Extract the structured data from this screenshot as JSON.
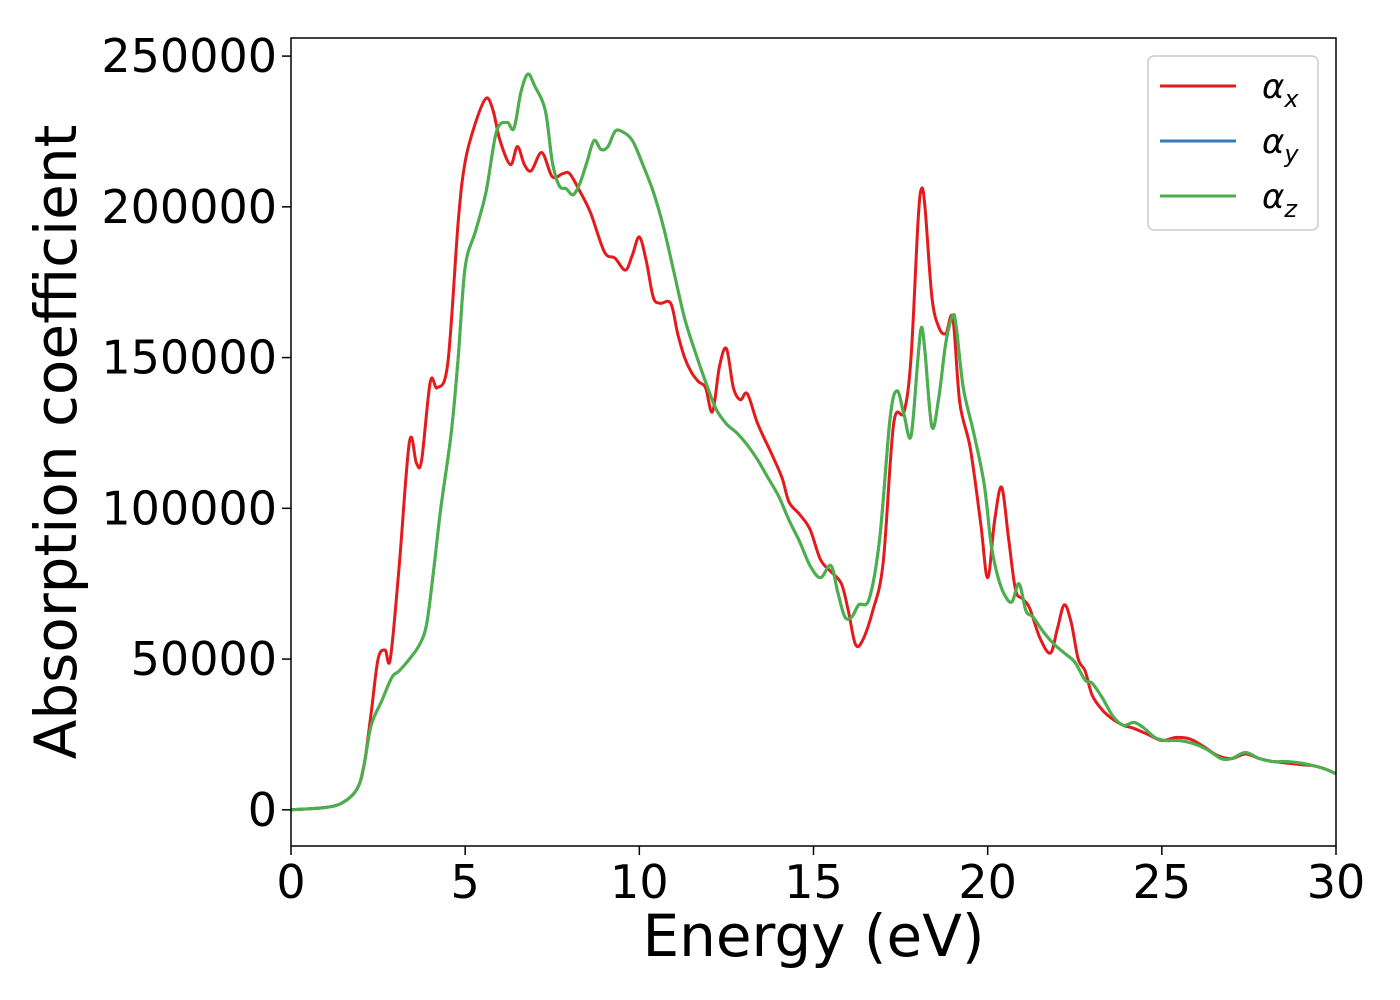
{
  "chart_data": {
    "type": "line",
    "title": "",
    "xlabel": "Energy (eV)",
    "ylabel": "Absorption coefficient",
    "xlim": [
      0,
      30
    ],
    "ylim": [
      -12000,
      256000
    ],
    "xticks": [
      0,
      5,
      10,
      15,
      20,
      25,
      30
    ],
    "xtick_labels": [
      "0",
      "5",
      "10",
      "15",
      "20",
      "25",
      "30"
    ],
    "yticks": [
      0,
      50000,
      100000,
      150000,
      200000,
      250000
    ],
    "ytick_labels": [
      "0",
      "50000",
      "100000",
      "150000",
      "200000",
      "250000"
    ],
    "grid": false,
    "legend_position": "top-right",
    "series": [
      {
        "name": "α_x",
        "label_main": "α",
        "label_sub": "x",
        "color": "#e41a1c",
        "x": [
          0,
          1,
          1.5,
          1.9,
          2.1,
          2.3,
          2.5,
          2.7,
          2.85,
          3.1,
          3.4,
          3.6,
          3.75,
          4.0,
          4.2,
          4.5,
          4.8,
          5.0,
          5.3,
          5.6,
          5.8,
          6.0,
          6.3,
          6.5,
          6.7,
          6.9,
          7.2,
          7.5,
          7.8,
          8.0,
          8.3,
          8.6,
          9.0,
          9.3,
          9.6,
          9.8,
          10.0,
          10.2,
          10.4,
          10.6,
          10.9,
          11.1,
          11.3,
          11.5,
          11.7,
          11.9,
          12.1,
          12.3,
          12.5,
          12.7,
          12.9,
          13.1,
          13.4,
          13.8,
          14.1,
          14.3,
          14.6,
          14.9,
          15.2,
          15.5,
          15.8,
          16.0,
          16.2,
          16.4,
          16.7,
          17.0,
          17.3,
          17.6,
          17.8,
          18.0,
          18.1,
          18.2,
          18.4,
          18.6,
          18.8,
          19.0,
          19.2,
          19.5,
          19.8,
          20.0,
          20.2,
          20.4,
          20.6,
          20.8,
          21.0,
          21.2,
          21.5,
          21.8,
          22.0,
          22.2,
          22.4,
          22.6,
          22.8,
          23.0,
          23.3,
          23.6,
          23.9,
          24.2,
          24.6,
          25.0,
          25.4,
          25.8,
          26.2,
          26.6,
          27.0,
          27.4,
          27.8,
          28.2,
          28.6,
          29.0,
          29.4,
          29.7,
          30
        ],
        "y": [
          0,
          800,
          2500,
          7000,
          15000,
          32000,
          50000,
          53000,
          50000,
          80000,
          122000,
          115000,
          116000,
          142000,
          140000,
          148000,
          195000,
          215000,
          228000,
          236000,
          232000,
          222000,
          214000,
          220000,
          214000,
          212000,
          218000,
          210000,
          211000,
          211000,
          205000,
          198000,
          185000,
          183000,
          179000,
          184000,
          190000,
          182000,
          170000,
          168000,
          168000,
          158000,
          150000,
          145000,
          142000,
          140000,
          132000,
          147000,
          153000,
          140000,
          136000,
          138000,
          128000,
          118000,
          110000,
          102000,
          98000,
          93000,
          83000,
          79000,
          75000,
          66000,
          55000,
          56000,
          66000,
          82000,
          128000,
          132000,
          150000,
          195000,
          206000,
          200000,
          170000,
          160000,
          158000,
          163000,
          135000,
          120000,
          95000,
          77000,
          96000,
          107000,
          90000,
          73000,
          70000,
          67000,
          57000,
          52000,
          60000,
          68000,
          62000,
          50000,
          46000,
          38000,
          33000,
          30000,
          28000,
          27000,
          25000,
          23000,
          24000,
          23500,
          21000,
          18000,
          17000,
          18500,
          17000,
          16000,
          15500,
          15000,
          14500,
          13500,
          12000
        ],
        "line_width": 3
      },
      {
        "name": "α_y",
        "label_main": "α",
        "label_sub": "y",
        "color": "#377eb8",
        "x": [
          0,
          1,
          1.5,
          1.9,
          2.1,
          2.3,
          2.6,
          2.9,
          3.1,
          3.4,
          3.7,
          3.9,
          4.1,
          4.3,
          4.6,
          4.8,
          5.0,
          5.3,
          5.6,
          5.9,
          6.2,
          6.4,
          6.6,
          6.8,
          7.0,
          7.3,
          7.5,
          7.7,
          7.9,
          8.1,
          8.3,
          8.5,
          8.7,
          8.9,
          9.1,
          9.3,
          9.5,
          9.8,
          10.1,
          10.4,
          10.7,
          11.0,
          11.3,
          11.6,
          11.9,
          12.2,
          12.5,
          12.8,
          13.1,
          13.4,
          13.7,
          14.0,
          14.3,
          14.6,
          14.9,
          15.2,
          15.5,
          15.7,
          15.9,
          16.1,
          16.3,
          16.6,
          16.9,
          17.2,
          17.4,
          17.6,
          17.8,
          18.0,
          18.1,
          18.2,
          18.4,
          18.6,
          18.8,
          19.0,
          19.1,
          19.3,
          19.6,
          19.9,
          20.1,
          20.3,
          20.5,
          20.7,
          20.9,
          21.1,
          21.3,
          21.6,
          21.9,
          22.2,
          22.5,
          22.8,
          23.0,
          23.3,
          23.6,
          23.9,
          24.2,
          24.5,
          24.8,
          25.1,
          25.5,
          25.9,
          26.3,
          26.7,
          27.0,
          27.4,
          27.8,
          28.2,
          28.6,
          29.0,
          29.4,
          29.7,
          30
        ],
        "y": [
          0,
          800,
          2500,
          7000,
          15000,
          28000,
          36000,
          44000,
          46000,
          50000,
          55000,
          62000,
          80000,
          100000,
          125000,
          150000,
          180000,
          192000,
          205000,
          225000,
          228000,
          226000,
          238000,
          244000,
          240000,
          232000,
          215000,
          207000,
          206000,
          204000,
          208000,
          215000,
          222000,
          219000,
          220000,
          225000,
          225000,
          222000,
          214000,
          205000,
          193000,
          178000,
          163000,
          152000,
          142000,
          133000,
          128000,
          125000,
          121000,
          116000,
          110000,
          104000,
          96000,
          89000,
          81000,
          77000,
          81000,
          72000,
          64000,
          64000,
          68000,
          70000,
          90000,
          130000,
          139000,
          131000,
          124000,
          150000,
          160000,
          152000,
          127000,
          137000,
          155000,
          164000,
          160000,
          140000,
          125000,
          108000,
          88000,
          77000,
          71000,
          69000,
          75000,
          66000,
          64000,
          59000,
          55000,
          52000,
          49000,
          43000,
          42000,
          37000,
          31000,
          28000,
          29000,
          27000,
          24000,
          23000,
          23000,
          22000,
          20000,
          17000,
          17000,
          19000,
          17000,
          16000,
          16000,
          15500,
          14500,
          13500,
          12000
        ],
        "line_width": 3
      },
      {
        "name": "α_z",
        "label_main": "α",
        "label_sub": "z",
        "color": "#4daf4a",
        "x": [
          0,
          1,
          1.5,
          1.9,
          2.1,
          2.3,
          2.6,
          2.9,
          3.1,
          3.4,
          3.7,
          3.9,
          4.1,
          4.3,
          4.6,
          4.8,
          5.0,
          5.3,
          5.6,
          5.9,
          6.2,
          6.4,
          6.6,
          6.8,
          7.0,
          7.3,
          7.5,
          7.7,
          7.9,
          8.1,
          8.3,
          8.5,
          8.7,
          8.9,
          9.1,
          9.3,
          9.5,
          9.8,
          10.1,
          10.4,
          10.7,
          11.0,
          11.3,
          11.6,
          11.9,
          12.2,
          12.5,
          12.8,
          13.1,
          13.4,
          13.7,
          14.0,
          14.3,
          14.6,
          14.9,
          15.2,
          15.5,
          15.7,
          15.9,
          16.1,
          16.3,
          16.6,
          16.9,
          17.2,
          17.4,
          17.6,
          17.8,
          18.0,
          18.1,
          18.2,
          18.4,
          18.6,
          18.8,
          19.0,
          19.1,
          19.3,
          19.6,
          19.9,
          20.1,
          20.3,
          20.5,
          20.7,
          20.9,
          21.1,
          21.3,
          21.6,
          21.9,
          22.2,
          22.5,
          22.8,
          23.0,
          23.3,
          23.6,
          23.9,
          24.2,
          24.5,
          24.8,
          25.1,
          25.5,
          25.9,
          26.3,
          26.7,
          27.0,
          27.4,
          27.8,
          28.2,
          28.6,
          29.0,
          29.4,
          29.7,
          30
        ],
        "y": [
          0,
          800,
          2500,
          7000,
          15000,
          28000,
          36000,
          44000,
          46000,
          50000,
          55000,
          62000,
          80000,
          100000,
          125000,
          150000,
          180000,
          192000,
          205000,
          225000,
          228000,
          226000,
          238000,
          244000,
          240000,
          232000,
          215000,
          207000,
          206000,
          204000,
          208000,
          215000,
          222000,
          219000,
          220000,
          225000,
          225000,
          222000,
          214000,
          205000,
          193000,
          178000,
          163000,
          152000,
          142000,
          133000,
          128000,
          125000,
          121000,
          116000,
          110000,
          104000,
          96000,
          89000,
          81000,
          77000,
          81000,
          72000,
          64000,
          64000,
          68000,
          70000,
          90000,
          130000,
          139000,
          131000,
          124000,
          150000,
          160000,
          152000,
          127000,
          137000,
          155000,
          164000,
          160000,
          140000,
          125000,
          108000,
          88000,
          77000,
          71000,
          69000,
          75000,
          66000,
          64000,
          59000,
          55000,
          52000,
          49000,
          43000,
          42000,
          37000,
          31000,
          28000,
          29000,
          27000,
          24000,
          23000,
          23000,
          22000,
          20000,
          17000,
          17000,
          19000,
          17000,
          16000,
          16000,
          15500,
          14500,
          13500,
          12000
        ],
        "line_width": 3
      }
    ]
  }
}
